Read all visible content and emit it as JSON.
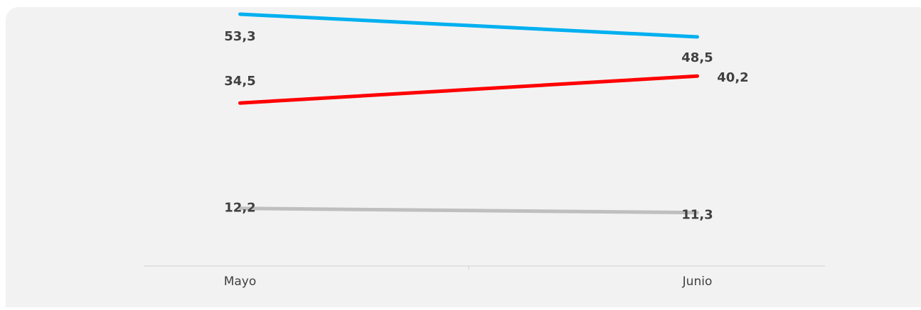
{
  "chart_data": {
    "type": "line",
    "categories": [
      "Mayo",
      "Junio"
    ],
    "series": [
      {
        "color": "#00b0f0",
        "values": [
          53.3,
          48.5
        ],
        "value_labels": [
          "53,3",
          "48,5"
        ]
      },
      {
        "color": "#ff0000",
        "values": [
          34.5,
          40.2
        ],
        "value_labels": [
          "34,5",
          "40,2"
        ]
      },
      {
        "color": "#bfbfbf",
        "values": [
          12.2,
          11.3
        ],
        "value_labels": [
          "12,2",
          "11,3"
        ]
      }
    ],
    "ylim": [
      0,
      56
    ]
  }
}
